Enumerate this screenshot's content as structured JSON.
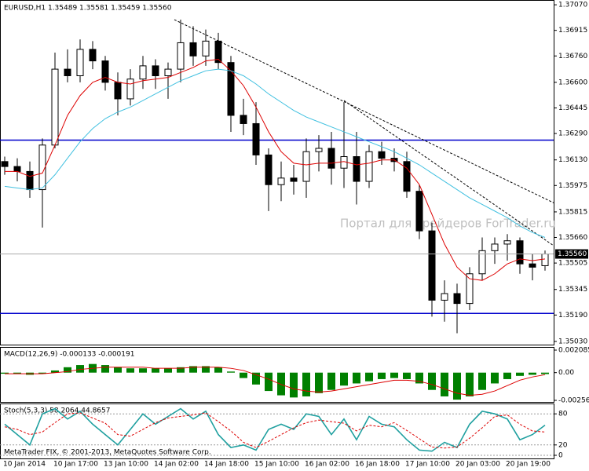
{
  "chart_data": [
    {
      "type": "candlestick",
      "title": "EURUSD,H1  1.35489 1.35581 1.35459 1.35560",
      "categories": [
        "10 Jan 2014",
        null,
        null,
        null,
        "10 Jan 17:00",
        null,
        null,
        null,
        "13 Jan 10:00",
        null,
        null,
        null,
        "14 Jan 02:00",
        null,
        null,
        null,
        "14 Jan 18:00",
        null,
        null,
        null,
        "15 Jan 10:00",
        null,
        null,
        null,
        "16 Jan 02:00",
        null,
        null,
        null,
        "16 Jan 18:00",
        null,
        null,
        null,
        "17 Jan 10:00",
        null,
        null,
        null,
        "20 Jan 03:00",
        null,
        null,
        null,
        "20 Jan 19:00",
        null,
        null,
        null
      ],
      "open": [
        1.3612,
        1.3609,
        1.3606,
        1.3595,
        1.3622,
        1.3668,
        1.3664,
        1.368,
        1.3673,
        1.366,
        1.365,
        1.3662,
        1.367,
        1.3664,
        1.3668,
        1.3684,
        1.3676,
        1.3685,
        1.3672,
        1.364,
        1.3635,
        1.3616,
        1.3598,
        1.3602,
        1.36,
        1.3618,
        1.362,
        1.3608,
        1.3615,
        1.36,
        1.3618,
        1.3614,
        1.3612,
        1.3594,
        1.357,
        1.3528,
        1.3532,
        1.3526,
        1.3544,
        1.3558,
        1.3562,
        1.3564,
        1.355,
        1.35489
      ],
      "high": [
        1.3615,
        1.3614,
        1.3612,
        1.3626,
        1.3678,
        1.368,
        1.3686,
        1.3685,
        1.3676,
        1.3666,
        1.3668,
        1.3676,
        1.3674,
        1.3672,
        1.3698,
        1.3694,
        1.3692,
        1.369,
        1.3676,
        1.365,
        1.3648,
        1.362,
        1.3612,
        1.361,
        1.3626,
        1.3628,
        1.363,
        1.3648,
        1.363,
        1.3622,
        1.3624,
        1.362,
        1.3618,
        1.3598,
        1.3575,
        1.354,
        1.3538,
        1.3548,
        1.3566,
        1.3566,
        1.3568,
        1.3566,
        1.3556,
        1.35581
      ],
      "low": [
        1.3604,
        1.36,
        1.359,
        1.3572,
        1.362,
        1.366,
        1.366,
        1.3668,
        1.3655,
        1.364,
        1.3646,
        1.3656,
        1.3656,
        1.365,
        1.366,
        1.367,
        1.367,
        1.3668,
        1.363,
        1.3628,
        1.361,
        1.3582,
        1.3588,
        1.3592,
        1.359,
        1.3606,
        1.3598,
        1.3596,
        1.3586,
        1.3596,
        1.361,
        1.3606,
        1.359,
        1.3565,
        1.3518,
        1.3515,
        1.3508,
        1.3522,
        1.354,
        1.355,
        1.3552,
        1.3544,
        1.354,
        1.35459
      ],
      "close": [
        1.3609,
        1.3606,
        1.3595,
        1.3622,
        1.3668,
        1.3664,
        1.368,
        1.3673,
        1.366,
        1.365,
        1.3662,
        1.367,
        1.3664,
        1.3668,
        1.3684,
        1.3676,
        1.3685,
        1.3672,
        1.364,
        1.3635,
        1.3616,
        1.3598,
        1.3602,
        1.36,
        1.3618,
        1.362,
        1.3608,
        1.3615,
        1.36,
        1.3618,
        1.3614,
        1.3612,
        1.3594,
        1.357,
        1.3528,
        1.3532,
        1.3526,
        1.3544,
        1.3558,
        1.3562,
        1.3564,
        1.355,
        1.3548,
        1.3556
      ],
      "overlays": [
        {
          "color": "#dd0000",
          "values": [
            1.3606,
            1.3606,
            1.3603,
            1.3605,
            1.3622,
            1.364,
            1.3652,
            1.366,
            1.3663,
            1.366,
            1.3659,
            1.3661,
            1.3662,
            1.3663,
            1.3666,
            1.3669,
            1.3673,
            1.3674,
            1.3667,
            1.3658,
            1.3645,
            1.363,
            1.3618,
            1.3611,
            1.361,
            1.3611,
            1.3611,
            1.3612,
            1.361,
            1.3611,
            1.3613,
            1.3613,
            1.3608,
            1.3598,
            1.358,
            1.3562,
            1.3548,
            1.3541,
            1.354,
            1.3544,
            1.355,
            1.3553,
            1.3552,
            1.3553
          ]
        },
        {
          "color": "#40c0e0",
          "values": [
            1.3597,
            1.3596,
            1.3595,
            1.3596,
            1.3604,
            1.3614,
            1.3624,
            1.3632,
            1.3638,
            1.3642,
            1.3645,
            1.3649,
            1.3653,
            1.3657,
            1.3661,
            1.3664,
            1.3667,
            1.3668,
            1.3667,
            1.3664,
            1.3659,
            1.3653,
            1.3648,
            1.3643,
            1.3639,
            1.3636,
            1.3633,
            1.363,
            1.3627,
            1.3624,
            1.3621,
            1.3618,
            1.3614,
            1.361,
            1.3605,
            1.36,
            1.3595,
            1.359,
            1.3586,
            1.3582,
            1.3578,
            1.3573,
            1.3569,
            1.3566
          ]
        }
      ],
      "hlines": {
        "color": "#0000cc",
        "values": [
          1.3625,
          1.352
        ]
      },
      "trendlines": [
        {
          "x": [
            13.5,
            43.69
          ],
          "y": [
            1.3698,
            1.3587
          ]
        },
        {
          "x": [
            27,
            43.69
          ],
          "y": [
            1.3649,
            1.3561
          ]
        }
      ],
      "trendline_color": "#000000",
      "watermark": "Портал для трейдеров ForTrader.ru",
      "price_tag": "1.35560",
      "ylim": [
        1.35006,
        1.37099
      ],
      "yticks": [
        {
          "value": 1.3707,
          "label": "1.37070"
        },
        1.36915,
        {
          "value": 1.3676,
          "label": "1.36760"
        },
        {
          "value": 1.366,
          "label": "1.36600"
        },
        1.36445,
        {
          "value": 1.3629,
          "label": "1.36290"
        },
        {
          "value": 1.3613,
          "label": "1.36130"
        },
        1.35975,
        1.35815,
        {
          "value": 1.3566,
          "label": "1.35660"
        },
        1.35505,
        1.35345,
        {
          "value": 1.3519,
          "label": "1.35190"
        },
        {
          "value": 1.3503,
          "label": "1.35030"
        }
      ]
    },
    {
      "type": "macd",
      "title": "MACD(12,26,9) -0.000133 -0.000191",
      "color": "#008000",
      "values": [
        -0.0001,
        -0.0001,
        -0.0002,
        -0.0001,
        0.0002,
        0.0005,
        0.0007,
        0.0008,
        0.0007,
        0.0005,
        0.0004,
        0.0004,
        0.0004,
        0.0004,
        0.0005,
        0.0006,
        0.0006,
        0.0005,
        0.0001,
        -0.0005,
        -0.0011,
        -0.0017,
        -0.0021,
        -0.0023,
        -0.0022,
        -0.0019,
        -0.0016,
        -0.0012,
        -0.001,
        -0.0008,
        -0.0006,
        -0.0005,
        -0.0006,
        -0.001,
        -0.0016,
        -0.0022,
        -0.0025,
        -0.0022,
        -0.0016,
        -0.001,
        -0.0006,
        -0.0003,
        -0.0002,
        -0.000133
      ],
      "signal": {
        "color": "#dd0000",
        "values": [
          -0.0001,
          -0.0001,
          -0.0001,
          -0.0001,
          0,
          0.0001,
          0.0003,
          0.0004,
          0.0005,
          0.0005,
          0.0005,
          0.0005,
          0.0004,
          0.0004,
          0.0004,
          0.0005,
          0.0005,
          0.0005,
          0.0004,
          0.0002,
          -0.0002,
          -0.0006,
          -0.0011,
          -0.0015,
          -0.0017,
          -0.0018,
          -0.0017,
          -0.0015,
          -0.0013,
          -0.0011,
          -0.0009,
          -0.0007,
          -0.0007,
          -0.0008,
          -0.0011,
          -0.0015,
          -0.0019,
          -0.0021,
          -0.002,
          -0.0017,
          -0.0012,
          -0.0007,
          -0.0004,
          -0.000191
        ]
      },
      "ylim": [
        -0.002566,
        0.002085
      ],
      "yticks": [
        0.002085,
        {
          "value": 0,
          "label": "0.00"
        },
        -0.002566
      ]
    },
    {
      "type": "stochastic",
      "title": "Stoch(5,3,3) 58.2064 44.8657",
      "series": [
        {
          "color": "#20a0a0",
          "values": [
            60,
            40,
            20,
            80,
            90,
            70,
            85,
            60,
            40,
            20,
            50,
            80,
            60,
            75,
            90,
            70,
            85,
            40,
            15,
            20,
            10,
            50,
            60,
            50,
            80,
            75,
            40,
            70,
            30,
            75,
            60,
            55,
            30,
            10,
            8,
            25,
            15,
            60,
            85,
            80,
            70,
            30,
            40,
            58.2064
          ]
        },
        {
          "color": "#dd0000",
          "dash": true,
          "values": [
            55,
            50,
            40,
            45,
            63,
            80,
            82,
            72,
            62,
            40,
            37,
            50,
            63,
            72,
            75,
            78,
            82,
            65,
            47,
            25,
            15,
            27,
            40,
            53,
            63,
            68,
            65,
            62,
            47,
            58,
            55,
            63,
            48,
            32,
            16,
            14,
            16,
            33,
            53,
            75,
            78,
            60,
            47,
            44.8657
          ]
        }
      ],
      "ylim": [
        0,
        100
      ],
      "yticks": [
        0,
        20,
        80
      ],
      "footer": "MetaTrader FIX, © 2001-2013, MetaQuotes Software Corp."
    }
  ]
}
